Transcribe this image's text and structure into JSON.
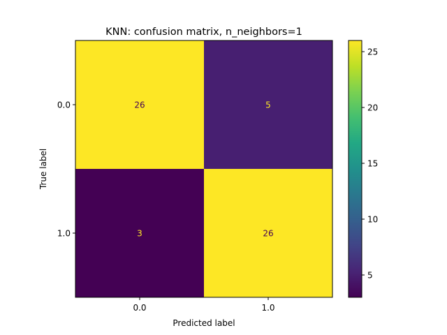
{
  "chart_data": {
    "type": "heatmap",
    "title": "KNN: confusion matrix, n_neighbors=1",
    "xlabel": "Predicted label",
    "ylabel": "True label",
    "x_categories": [
      "0.0",
      "1.0"
    ],
    "y_categories": [
      "0.0",
      "1.0"
    ],
    "values": [
      [
        26,
        5
      ],
      [
        3,
        26
      ]
    ],
    "value_labels": [
      [
        "26",
        "5"
      ],
      [
        "3",
        "26"
      ]
    ],
    "colormap": "viridis",
    "color_range": [
      3,
      26
    ],
    "colorbar_ticks": [
      5,
      10,
      15,
      20,
      25
    ],
    "colorbar_tick_labels": [
      "5",
      "10",
      "15",
      "20",
      "25"
    ],
    "grid": false
  },
  "colors": {
    "cell_high": "#fde725",
    "cell_low": "#440154",
    "text_on_dark": "#fde725",
    "text_on_light": "#440154",
    "axes": "#000000"
  }
}
